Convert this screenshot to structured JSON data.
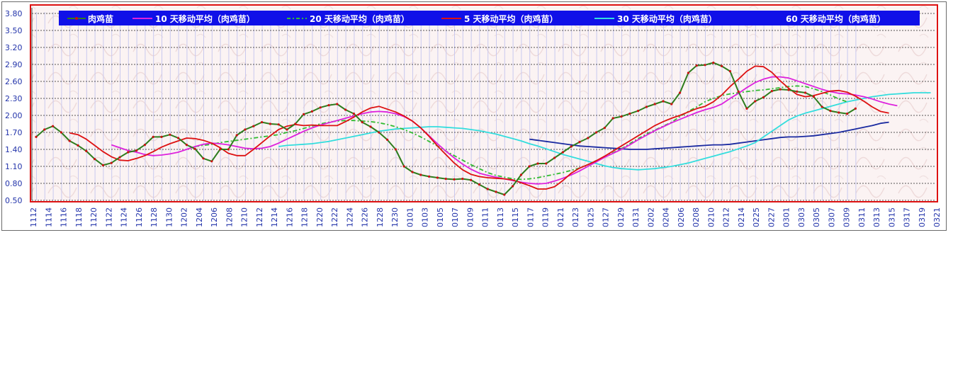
{
  "chart_data": {
    "type": "line",
    "title": "",
    "xlabel": "",
    "ylabel": "",
    "ylim": [
      0.5,
      3.9
    ],
    "y_ticks": [
      "0.50",
      "0.80",
      "1.10",
      "1.40",
      "1.70",
      "2.00",
      "2.30",
      "2.60",
      "2.90",
      "3.20",
      "3.50",
      "3.80"
    ],
    "x_ticks": [
      "1112",
      "1114",
      "1116",
      "1118",
      "1120",
      "1122",
      "1124",
      "1126",
      "1128",
      "1130",
      "1202",
      "1204",
      "1206",
      "1208",
      "1210",
      "1212",
      "1214",
      "1216",
      "1218",
      "1220",
      "1222",
      "1224",
      "1226",
      "1228",
      "1230",
      "0101",
      "0103",
      "0105",
      "0107",
      "0109",
      "0111",
      "0113",
      "0115",
      "0117",
      "0119",
      "0121",
      "0123",
      "0125",
      "0127",
      "0129",
      "0131",
      "0202",
      "0204",
      "0206",
      "0208",
      "0210",
      "0212",
      "0214",
      "0225",
      "0227",
      "0301",
      "0303",
      "0305",
      "0307",
      "0309",
      "0311",
      "0313",
      "0315",
      "0317",
      "0319",
      "0321"
    ],
    "grid": true,
    "legend_position": "top",
    "series": [
      {
        "name": "肉鸡苗",
        "color": "#2e7d1e",
        "line_color": "#2e7d1e",
        "marker_color": "#cc1111",
        "legend_marker": "line-dot",
        "start": 0,
        "values": [
          1.62,
          1.75,
          1.81,
          1.7,
          1.55,
          1.47,
          1.37,
          1.23,
          1.12,
          1.16,
          1.26,
          1.35,
          1.38,
          1.48,
          1.62,
          1.62,
          1.66,
          1.6,
          1.48,
          1.41,
          1.24,
          1.19,
          1.4,
          1.4,
          1.65,
          1.75,
          1.81,
          1.88,
          1.85,
          1.84,
          1.75,
          1.85,
          2.02,
          2.07,
          2.14,
          2.18,
          2.2,
          2.1,
          2.03,
          1.88,
          1.8,
          1.7,
          1.57,
          1.4,
          1.1,
          1.0,
          0.95,
          0.92,
          0.9,
          0.88,
          0.87,
          0.88,
          0.86,
          0.78,
          0.7,
          0.65,
          0.6,
          0.75,
          0.95,
          1.1,
          1.15,
          1.15,
          1.25,
          1.35,
          1.45,
          1.53,
          1.6,
          1.7,
          1.78,
          1.95,
          1.98,
          2.03,
          2.08,
          2.15,
          2.2,
          2.25,
          2.2,
          2.4,
          2.75,
          2.88,
          2.89,
          2.93,
          2.87,
          2.78,
          2.42,
          2.12,
          2.25,
          2.32,
          2.43,
          2.46,
          2.45,
          2.42,
          2.4,
          2.33,
          2.15,
          2.08,
          2.05,
          2.03,
          2.12
        ]
      },
      {
        "name": "10 天移动平均（肉鸡苗）",
        "color": "#dd22dd",
        "legend_marker": "line",
        "start": 9,
        "values": [
          1.48,
          1.43,
          1.38,
          1.35,
          1.31,
          1.29,
          1.3,
          1.32,
          1.35,
          1.4,
          1.45,
          1.49,
          1.51,
          1.5,
          1.48,
          1.45,
          1.42,
          1.41,
          1.42,
          1.45,
          1.51,
          1.58,
          1.65,
          1.72,
          1.78,
          1.83,
          1.87,
          1.91,
          1.95,
          1.99,
          2.03,
          2.06,
          2.07,
          2.06,
          2.03,
          1.98,
          1.9,
          1.78,
          1.64,
          1.5,
          1.37,
          1.25,
          1.14,
          1.05,
          0.98,
          0.94,
          0.91,
          0.88,
          0.85,
          0.82,
          0.8,
          0.79,
          0.8,
          0.84,
          0.89,
          0.95,
          1.02,
          1.1,
          1.18,
          1.26,
          1.33,
          1.4,
          1.48,
          1.57,
          1.65,
          1.73,
          1.8,
          1.87,
          1.93,
          1.99,
          2.05,
          2.1,
          2.14,
          2.2,
          2.3,
          2.39,
          2.49,
          2.58,
          2.64,
          2.68,
          2.68,
          2.66,
          2.61,
          2.56,
          2.51,
          2.46,
          2.42,
          2.39,
          2.38,
          2.36,
          2.33,
          2.29,
          2.24,
          2.2,
          2.17
        ]
      },
      {
        "name": "20 天移动平均（肉鸡苗）",
        "color": "#33bb33",
        "legend_marker": "dashdot",
        "dash": "6 3 2 3",
        "start": 19,
        "values": [
          1.45,
          1.47,
          1.49,
          1.52,
          1.54,
          1.56,
          1.58,
          1.6,
          1.62,
          1.64,
          1.66,
          1.7,
          1.73,
          1.77,
          1.81,
          1.85,
          1.88,
          1.9,
          1.91,
          1.91,
          1.9,
          1.89,
          1.87,
          1.84,
          1.8,
          1.75,
          1.69,
          1.62,
          1.54,
          1.46,
          1.37,
          1.29,
          1.21,
          1.13,
          1.06,
          0.99,
          0.94,
          0.91,
          0.88,
          0.87,
          0.88,
          0.9,
          0.93,
          0.96,
          0.99,
          1.03,
          1.07,
          1.13,
          1.2,
          1.27,
          1.34,
          1.41,
          1.5,
          1.59,
          1.67,
          1.74,
          1.81,
          1.88,
          1.98,
          2.07,
          2.15,
          2.24,
          2.3,
          2.35,
          2.38,
          2.4,
          2.42,
          2.44,
          2.45,
          2.47,
          2.49,
          2.51,
          2.52,
          2.51,
          2.47,
          2.42,
          2.36,
          2.29,
          2.24
        ]
      },
      {
        "name": "5 天移动平均（肉鸡苗）",
        "color": "#dd1111",
        "legend_marker": "line",
        "start": 4,
        "values": [
          1.69,
          1.66,
          1.58,
          1.47,
          1.36,
          1.27,
          1.21,
          1.2,
          1.24,
          1.29,
          1.36,
          1.44,
          1.5,
          1.55,
          1.6,
          1.59,
          1.56,
          1.51,
          1.43,
          1.33,
          1.29,
          1.29,
          1.4,
          1.52,
          1.64,
          1.75,
          1.81,
          1.84,
          1.82,
          1.83,
          1.82,
          1.82,
          1.82,
          1.89,
          1.97,
          2.06,
          2.13,
          2.16,
          2.11,
          2.06,
          1.99,
          1.9,
          1.78,
          1.63,
          1.46,
          1.31,
          1.16,
          1.04,
          0.96,
          0.92,
          0.9,
          0.89,
          0.88,
          0.86,
          0.81,
          0.76,
          0.7,
          0.7,
          0.74,
          0.85,
          0.98,
          1.07,
          1.13,
          1.2,
          1.28,
          1.37,
          1.46,
          1.55,
          1.64,
          1.73,
          1.82,
          1.89,
          1.95,
          2.0,
          2.06,
          2.12,
          2.16,
          2.24,
          2.36,
          2.51,
          2.64,
          2.78,
          2.87,
          2.86,
          2.76,
          2.61,
          2.48,
          2.37,
          2.33,
          2.35,
          2.39,
          2.43,
          2.44,
          2.41,
          2.34,
          2.25,
          2.15,
          2.07,
          2.04
        ]
      },
      {
        "name": "30 天移动平均（肉鸡苗）",
        "color": "#33dddd",
        "legend_marker": "line",
        "start": 29,
        "values": [
          1.45,
          1.47,
          1.48,
          1.49,
          1.5,
          1.52,
          1.54,
          1.57,
          1.6,
          1.63,
          1.66,
          1.69,
          1.72,
          1.74,
          1.76,
          1.77,
          1.78,
          1.79,
          1.8,
          1.8,
          1.79,
          1.78,
          1.77,
          1.75,
          1.73,
          1.7,
          1.67,
          1.63,
          1.59,
          1.55,
          1.5,
          1.46,
          1.41,
          1.36,
          1.31,
          1.27,
          1.23,
          1.19,
          1.15,
          1.11,
          1.08,
          1.06,
          1.05,
          1.04,
          1.05,
          1.06,
          1.08,
          1.1,
          1.13,
          1.16,
          1.2,
          1.24,
          1.28,
          1.32,
          1.36,
          1.41,
          1.46,
          1.52,
          1.62,
          1.72,
          1.82,
          1.92,
          1.99,
          2.04,
          2.08,
          2.12,
          2.16,
          2.2,
          2.24,
          2.27,
          2.3,
          2.33,
          2.35,
          2.37,
          2.38,
          2.39,
          2.4,
          2.4,
          2.4
        ]
      },
      {
        "name": "60 天移动平均（肉鸡苗）",
        "color": "#1a2aa0",
        "legend_marker": "line",
        "start": 59,
        "values": [
          1.58,
          1.56,
          1.54,
          1.52,
          1.5,
          1.48,
          1.46,
          1.45,
          1.44,
          1.43,
          1.42,
          1.41,
          1.4,
          1.4,
          1.4,
          1.41,
          1.42,
          1.43,
          1.44,
          1.45,
          1.46,
          1.47,
          1.48,
          1.48,
          1.49,
          1.51,
          1.53,
          1.55,
          1.57,
          1.59,
          1.61,
          1.62,
          1.62,
          1.63,
          1.64,
          1.66,
          1.68,
          1.7,
          1.73,
          1.76,
          1.79,
          1.82,
          1.86,
          1.88
        ]
      }
    ]
  }
}
